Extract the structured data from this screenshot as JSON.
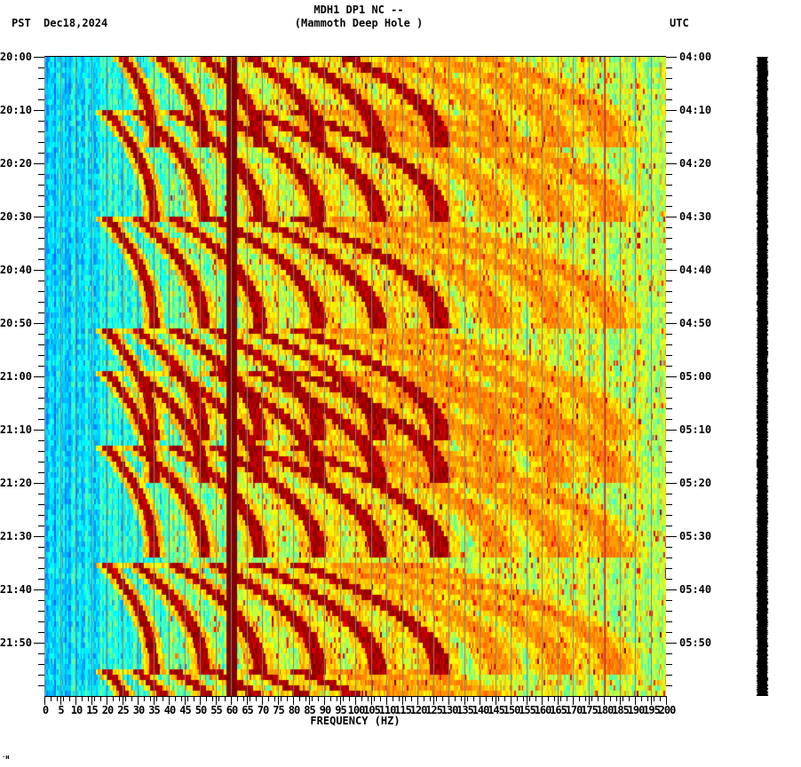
{
  "header": {
    "station_line": "MDH1 DP1 NC --",
    "location_line": "(Mammoth Deep Hole )",
    "left_timezone": "PST",
    "date": "Dec18,2024",
    "right_timezone": "UTC"
  },
  "corner_mark": "·ʜ",
  "chart_data": {
    "type": "heatmap",
    "title": "MDH1 DP1 NC -- (Mammoth Deep Hole )",
    "subtitle": "PST Dec18,2024 / UTC",
    "xlabel": "FREQUENCY (HZ)",
    "ylabel_left": "PST",
    "ylabel_right": "UTC",
    "xlim": [
      0,
      200
    ],
    "x_ticks": [
      "0",
      "5",
      "10",
      "15",
      "20",
      "25",
      "30",
      "35",
      "40",
      "45",
      "50",
      "55",
      "60",
      "65",
      "70",
      "75",
      "80",
      "85",
      "90",
      "95",
      "100",
      "105",
      "110",
      "115",
      "120",
      "125",
      "130",
      "135",
      "140",
      "145",
      "150",
      "155",
      "160",
      "165",
      "170",
      "175",
      "180",
      "185",
      "190",
      "195",
      "200"
    ],
    "x_minor_step_hz": 1,
    "y_ticks_left": [
      "20:00",
      "20:10",
      "20:20",
      "20:30",
      "20:40",
      "20:50",
      "21:00",
      "21:10",
      "21:20",
      "21:30",
      "21:40",
      "21:50"
    ],
    "y_ticks_right": [
      "04:00",
      "04:10",
      "04:20",
      "04:30",
      "04:40",
      "04:50",
      "05:00",
      "05:10",
      "05:20",
      "05:30",
      "05:40",
      "05:50"
    ],
    "y_minor_step_min": 2,
    "time_span_min": 120,
    "grid": {
      "vertical_every_hz": 5,
      "color": "#808080"
    },
    "colormap": [
      "#0050ff",
      "#00a0ff",
      "#00ffff",
      "#80ff80",
      "#ffff00",
      "#ff8000",
      "#ff0000",
      "#800000"
    ],
    "features": {
      "steady_lines_hz": [
        {
          "freq": 60,
          "intensity": 1.0,
          "width_hz": 1.6
        },
        {
          "freq": 180,
          "intensity": 0.85,
          "width_hz": 0.4
        }
      ],
      "chirp_events_start_min": [
        -4,
        10,
        30,
        51,
        59,
        73,
        95,
        115
      ],
      "chirp_harmonics_start_hz": [
        20,
        30,
        42,
        55,
        68,
        82,
        95,
        108,
        120
      ],
      "chirp_duration_min": 20,
      "noise_floor": {
        "low_freq_level": 0.18,
        "high_freq_level": 0.55,
        "transition_hz": 40
      }
    }
  }
}
